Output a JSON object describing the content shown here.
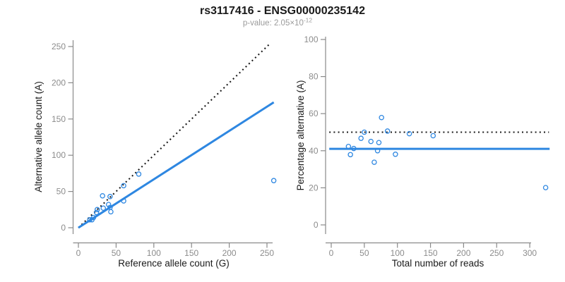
{
  "title": "rs3117416 - ENSG00000235142",
  "subtitle": {
    "text": "p-value: 2.05×10",
    "exponent": "-12"
  },
  "colors": {
    "blue": "#2e87e1",
    "black": "#1a1a1a",
    "axis": "#8a8a8a",
    "tick_text": "#8c8c8c"
  },
  "chart_data": [
    {
      "type": "scatter",
      "panel": "allele-counts",
      "xlabel": "Reference allele count (G)",
      "ylabel": "Alternative allele count (A)",
      "xticks": [
        0,
        50,
        100,
        150,
        200,
        250
      ],
      "yticks": [
        0,
        50,
        100,
        150,
        200,
        250
      ],
      "xlim": [
        0,
        260
      ],
      "ylim": [
        0,
        258
      ],
      "grid": false,
      "points": [
        [
          15,
          11
        ],
        [
          18,
          11
        ],
        [
          20,
          14
        ],
        [
          24,
          21
        ],
        [
          25,
          25
        ],
        [
          33,
          27
        ],
        [
          40,
          32
        ],
        [
          42,
          28
        ],
        [
          42,
          43
        ],
        [
          32,
          44
        ],
        [
          43,
          22
        ],
        [
          60,
          37
        ],
        [
          60,
          58
        ],
        [
          80,
          74
        ],
        [
          259,
          65
        ]
      ],
      "lines": [
        {
          "name": "identity-line",
          "style": "dotted",
          "color": "black",
          "x1": 0,
          "y1": 0,
          "x2": 255,
          "y2": 255
        },
        {
          "name": "fit-line",
          "style": "solid",
          "color": "blue",
          "x1": 0,
          "y1": 0,
          "x2": 259,
          "y2": 173
        }
      ]
    },
    {
      "type": "scatter",
      "panel": "percentage-alternative",
      "xlabel": "Total number of reads",
      "ylabel": "Percentage alternative (A)",
      "xticks": [
        0,
        50,
        100,
        150,
        200,
        250,
        300
      ],
      "yticks": [
        0,
        20,
        40,
        60,
        80,
        100
      ],
      "xlim": [
        0,
        330
      ],
      "ylim": [
        0,
        100
      ],
      "grid": false,
      "points": [
        [
          26,
          42.3
        ],
        [
          29,
          37.9
        ],
        [
          34,
          41.2
        ],
        [
          45,
          46.7
        ],
        [
          50,
          50.0
        ],
        [
          60,
          45.0
        ],
        [
          65,
          33.8
        ],
        [
          70,
          40.0
        ],
        [
          72,
          44.4
        ],
        [
          76,
          57.9
        ],
        [
          85,
          50.6
        ],
        [
          97,
          38.1
        ],
        [
          118,
          49.2
        ],
        [
          154,
          48.1
        ],
        [
          324,
          20.1
        ]
      ],
      "lines": [
        {
          "name": "expected-50pct-line",
          "style": "dotted",
          "color": "black",
          "x1": -3,
          "y1": 50,
          "x2": 329,
          "y2": 50
        },
        {
          "name": "fit-line",
          "style": "solid",
          "color": "blue",
          "x1": -3,
          "y1": 41,
          "x2": 330,
          "y2": 41
        }
      ]
    }
  ]
}
